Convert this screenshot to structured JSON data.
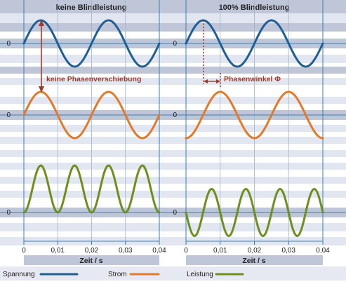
{
  "titles": {
    "left": "keine Blindleistung",
    "right": "100% Blindleistung"
  },
  "annotations": {
    "no_shift": "keine Phasenverschiebung",
    "phase_angle": "Phasenwinkel Φ"
  },
  "zero_labels": {
    "voltage": "0",
    "current": "0",
    "power": "0"
  },
  "x_axis": {
    "label": "Zeit / s",
    "ticks": [
      "0",
      "0,01",
      "0,02",
      "0,03",
      "0,04"
    ]
  },
  "legend": {
    "items": [
      {
        "label": "Spannung",
        "color": "#1f5f95"
      },
      {
        "label": "Strom",
        "color": "#e17a2b"
      },
      {
        "label": "Leistung",
        "color": "#6e8f1e"
      }
    ]
  },
  "colors": {
    "voltage": "#1f5f95",
    "current": "#e17a2b",
    "power": "#6e8f1e",
    "annotation": "#a23a2a",
    "band_dark": "#bec6d8",
    "band_light": "#e2e6f0",
    "axis": "#3b7fb5",
    "background": "#ffffff",
    "text": "#222222"
  },
  "chart_data": [
    {
      "type": "line",
      "title": "keine Blindleistung",
      "xlabel": "Zeit / s",
      "x_ticks": [
        0,
        0.01,
        0.02,
        0.03,
        0.04
      ],
      "xlim": [
        0,
        0.04
      ],
      "frequency_hz": 50,
      "series": [
        {
          "name": "Spannung",
          "function": "sin",
          "amplitude": 1,
          "phase_deg": 0
        },
        {
          "name": "Strom",
          "function": "sin",
          "amplitude": 1,
          "phase_deg": 0
        },
        {
          "name": "Leistung",
          "function": "u*i",
          "mean": 0.5,
          "amplitude": 0.5,
          "phase_deg": 0
        }
      ]
    },
    {
      "type": "line",
      "title": "100% Blindleistung",
      "xlabel": "Zeit / s",
      "x_ticks": [
        0,
        0.01,
        0.02,
        0.03,
        0.04
      ],
      "xlim": [
        0,
        0.04
      ],
      "frequency_hz": 50,
      "series": [
        {
          "name": "Spannung",
          "function": "sin",
          "amplitude": 1,
          "phase_deg": 0
        },
        {
          "name": "Strom",
          "function": "sin",
          "amplitude": 1,
          "phase_deg": -90
        },
        {
          "name": "Leistung",
          "function": "u*i",
          "mean": 0,
          "amplitude": 0.5,
          "phase_deg": -90
        }
      ]
    }
  ]
}
